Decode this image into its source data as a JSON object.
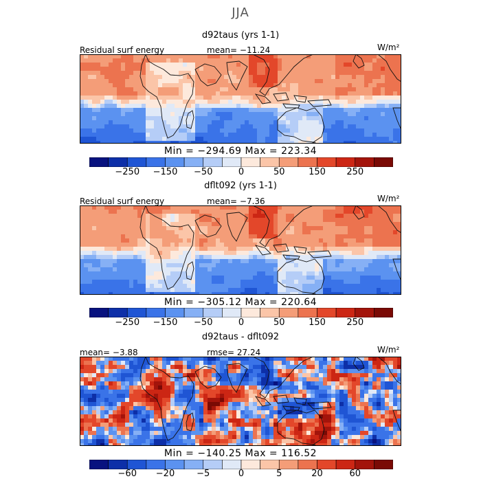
{
  "title": "JJA",
  "colors": {
    "abs": [
      "#08127f",
      "#0d2fa8",
      "#1f55d4",
      "#3a73e8",
      "#5b92f0",
      "#86b0f5",
      "#b5cdf7",
      "#e0e9f7",
      "#fde9dc",
      "#fbc5a8",
      "#f49d78",
      "#ec734f",
      "#e3472a",
      "#cc2614",
      "#a3140b",
      "#7a0a05"
    ]
  },
  "chart_data": [
    {
      "type": "heatmap",
      "title": "d92taus (yrs 1-1)",
      "field_label": "Residual surf energy",
      "stat_label": "mean= -11.24",
      "units": "W/m²",
      "min_max": "Min = -294.69 Max = 223.34",
      "colorbar": {
        "levels": [
          -350,
          -300,
          -250,
          -200,
          -150,
          -100,
          -50,
          -25,
          0,
          25,
          50,
          100,
          150,
          200,
          250,
          300,
          350
        ],
        "tick_labels": [
          "-250",
          "-150",
          "-50",
          "0",
          "50",
          "150",
          "250"
        ]
      },
      "mean": -11.24,
      "min": -294.69,
      "max": 223.34
    },
    {
      "type": "heatmap",
      "title": "dflt092 (yrs 1-1)",
      "field_label": "Residual surf energy",
      "stat_label": "mean= -7.36",
      "units": "W/m²",
      "min_max": "Min = -305.12 Max = 220.64",
      "colorbar": {
        "levels": [
          -350,
          -300,
          -250,
          -200,
          -150,
          -100,
          -50,
          -25,
          0,
          25,
          50,
          100,
          150,
          200,
          250,
          300,
          350
        ],
        "tick_labels": [
          "-250",
          "-150",
          "-50",
          "0",
          "50",
          "150",
          "250"
        ]
      },
      "mean": -7.36,
      "min": -305.12,
      "max": 220.64
    },
    {
      "type": "heatmap",
      "title": "d92taus - dflt092",
      "field_label": "mean= -3.88",
      "stat_label": "rmse= 27.24",
      "units": "W/m²",
      "min_max": "Min = -140.25 Max = 116.52",
      "colorbar": {
        "levels": [
          -100,
          -80,
          -60,
          -40,
          -20,
          -10,
          -5,
          -2,
          0,
          2,
          5,
          10,
          20,
          40,
          60,
          80,
          100
        ],
        "tick_labels": [
          "-60",
          "-20",
          "-5",
          "0",
          "5",
          "20",
          "60"
        ]
      },
      "mean": -3.88,
      "rmse": 27.24,
      "min": -140.25,
      "max": 116.52
    }
  ]
}
